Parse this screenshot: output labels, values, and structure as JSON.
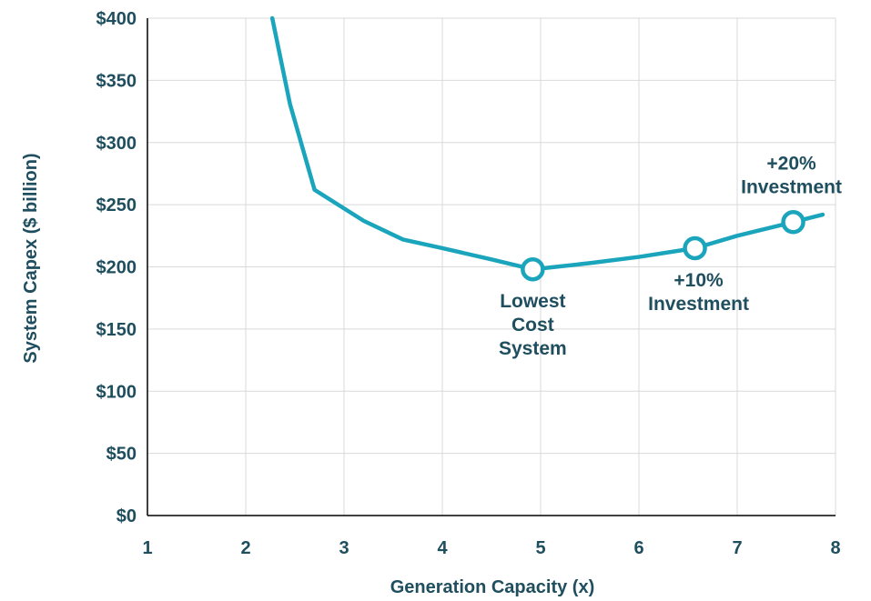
{
  "chart_data": {
    "type": "line",
    "title": "",
    "xlabel": "Generation Capacity (x)",
    "ylabel": "System Capex ($ billion)",
    "xlim": [
      1,
      8
    ],
    "ylim": [
      0,
      400
    ],
    "x_ticks": [
      "1",
      "2",
      "3",
      "4",
      "5",
      "6",
      "7",
      "8"
    ],
    "y_ticks": [
      "$0",
      "$50",
      "$100",
      "$150",
      "$200",
      "$250",
      "$300",
      "$350",
      "$400"
    ],
    "grid": true,
    "line_color": "#1aa5bd",
    "text_color": "#1f4e5f",
    "series": [
      {
        "x": [
          2.27,
          2.45,
          2.7,
          3.0,
          3.2,
          3.6,
          4.0,
          4.5,
          4.92,
          5.5,
          6.0,
          6.57,
          7.0,
          7.57,
          7.87
        ],
        "values": [
          400,
          331,
          262,
          247,
          237,
          222,
          215,
          206,
          198,
          203,
          208,
          215,
          225,
          236,
          242
        ]
      }
    ],
    "annotations": [
      {
        "label": [
          "Lowest",
          "Cost",
          "System"
        ],
        "x": 4.92,
        "y": 198
      },
      {
        "label": [
          "+10%",
          "Investment"
        ],
        "x": 6.57,
        "y": 215
      },
      {
        "label": [
          "+20%",
          "Investment"
        ],
        "x": 7.57,
        "y": 236
      }
    ]
  }
}
